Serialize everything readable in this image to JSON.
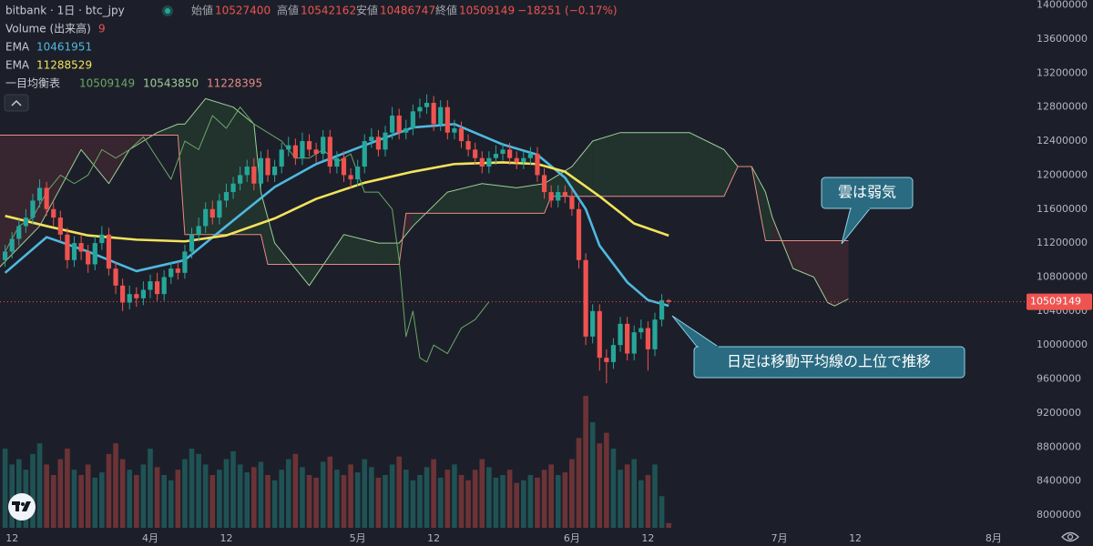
{
  "chart_data": {
    "type": "candlestick",
    "header": {
      "open_label": "始値",
      "high_label": "高値",
      "low_label": "安値",
      "close_label": "終値",
      "change": {
        "value": -18251,
        "label": "−18251 (−0.17%)"
      }
    },
    "xlim": [
      0.26,
      148.5
    ],
    "xticks": [
      {
        "value": 2,
        "label": "12"
      },
      {
        "value": 22,
        "label": "4月"
      },
      {
        "value": 33,
        "label": "12"
      },
      {
        "value": 52,
        "label": "5月"
      },
      {
        "value": 63,
        "label": "12"
      },
      {
        "value": 83,
        "label": "6月"
      },
      {
        "value": 94,
        "label": "12"
      },
      {
        "value": 113,
        "label": "7月"
      },
      {
        "value": 124,
        "label": "12"
      },
      {
        "value": 144,
        "label": "8月"
      }
    ],
    "ylim": [
      7850000,
      14060000
    ],
    "yticks": [
      8000000,
      8400000,
      8800000,
      9200000,
      9600000,
      10000000,
      10400000,
      10800000,
      11200000,
      11600000,
      12000000,
      12400000,
      12800000,
      13200000,
      13600000,
      14000000
    ],
    "grid": false,
    "volume_lim": [
      0,
      1000
    ],
    "annotations": [
      "雲は弱気",
      "日足は移動平均線の上位で推移"
    ],
    "series": [
      {
        "name": "bitbank · 1日 · btc_jpy",
        "type": "candlestick",
        "up_color": "#26a69a",
        "down_color": "#ef5350",
        "x": [
          1,
          2,
          3,
          4,
          5,
          6,
          7,
          8,
          9,
          10,
          11,
          12,
          13,
          14,
          15,
          16,
          17,
          18,
          19,
          20,
          21,
          22,
          23,
          24,
          25,
          26,
          27,
          28,
          29,
          30,
          31,
          32,
          33,
          34,
          35,
          36,
          37,
          38,
          39,
          40,
          41,
          42,
          43,
          44,
          45,
          46,
          47,
          48,
          49,
          50,
          51,
          52,
          53,
          54,
          55,
          56,
          57,
          58,
          59,
          60,
          61,
          62,
          63,
          64,
          65,
          66,
          67,
          68,
          69,
          70,
          71,
          72,
          73,
          74,
          75,
          76,
          77,
          78,
          79,
          80,
          81,
          82,
          83,
          84,
          85,
          86,
          87,
          88,
          89,
          90,
          91,
          92,
          93,
          94,
          95,
          96,
          97
        ],
        "open": [
          11000000,
          11100000,
          11250000,
          11400000,
          11500000,
          11700000,
          11850000,
          11600000,
          11500000,
          11300000,
          11000000,
          11200000,
          11100000,
          10950000,
          11200000,
          11300000,
          10900000,
          10700000,
          10500000,
          10600000,
          10550000,
          10650000,
          10750000,
          10600000,
          10800000,
          10900000,
          10850000,
          11100000,
          11300000,
          11400000,
          11600000,
          11500000,
          11700000,
          11800000,
          11900000,
          12000000,
          12100000,
          11900000,
          12200000,
          12000000,
          12100000,
          12300000,
          12350000,
          12200000,
          12400000,
          12300000,
          12250000,
          12450000,
          12100000,
          12200000,
          12000000,
          11950000,
          12100000,
          12400000,
          12450000,
          12300000,
          12500000,
          12700000,
          12500000,
          12550000,
          12750000,
          12800000,
          12850000,
          12600000,
          12800000,
          12500000,
          12550000,
          12400000,
          12300000,
          12200000,
          12100000,
          12200000,
          12250000,
          12300000,
          12200000,
          12150000,
          12200000,
          12250000,
          12000000,
          11800000,
          11700000,
          11800000,
          11750000,
          11600000,
          11000000,
          10100000,
          10400000,
          9850000,
          9800000,
          10000000,
          10250000,
          9900000,
          10150000,
          10200000,
          9950000,
          10300000,
          10527400
        ],
        "high": [
          11180000,
          11330000,
          11480000,
          11600000,
          11780000,
          11950000,
          11920000,
          11680000,
          11580000,
          11380000,
          11280000,
          11300000,
          11180000,
          11280000,
          11400000,
          11380000,
          10980000,
          10780000,
          10700000,
          10680000,
          10750000,
          10830000,
          10850000,
          10880000,
          10980000,
          10980000,
          11180000,
          11380000,
          11500000,
          11680000,
          11700000,
          11780000,
          11900000,
          11980000,
          12100000,
          12180000,
          12200000,
          12280000,
          12300000,
          12180000,
          12380000,
          12450000,
          12430000,
          12500000,
          12480000,
          12380000,
          12530000,
          12530000,
          12280000,
          12280000,
          12080000,
          12180000,
          12480000,
          12550000,
          12530000,
          12580000,
          12800000,
          12780000,
          12650000,
          12830000,
          12900000,
          12950000,
          12930000,
          12880000,
          12880000,
          12650000,
          12630000,
          12480000,
          12380000,
          12280000,
          12280000,
          12350000,
          12380000,
          12380000,
          12280000,
          12280000,
          12330000,
          12330000,
          12080000,
          11880000,
          11880000,
          11880000,
          11830000,
          11680000,
          11080000,
          10480000,
          10480000,
          9950000,
          10080000,
          10330000,
          10330000,
          10230000,
          10300000,
          10280000,
          10380000,
          10600000,
          10542162
        ],
        "low": [
          10920000,
          11020000,
          11170000,
          11320000,
          11420000,
          11620000,
          11520000,
          11400000,
          11220000,
          10900000,
          10920000,
          11000000,
          10850000,
          10880000,
          11120000,
          10820000,
          10600000,
          10400000,
          10420000,
          10450000,
          10470000,
          10550000,
          10520000,
          10520000,
          10720000,
          10770000,
          10780000,
          11020000,
          11220000,
          11320000,
          11420000,
          11420000,
          11620000,
          11720000,
          11820000,
          11920000,
          11820000,
          11820000,
          11920000,
          11920000,
          12020000,
          12220000,
          12120000,
          12120000,
          12220000,
          12150000,
          12170000,
          12020000,
          12020000,
          11920000,
          11850000,
          11870000,
          12020000,
          12320000,
          12220000,
          12220000,
          12420000,
          12420000,
          12420000,
          12470000,
          12670000,
          12720000,
          12520000,
          12520000,
          12420000,
          12420000,
          12320000,
          12220000,
          12120000,
          12020000,
          12020000,
          12120000,
          12170000,
          12120000,
          12070000,
          12070000,
          12120000,
          11920000,
          11720000,
          11620000,
          11620000,
          11670000,
          11520000,
          10900000,
          10000000,
          10020000,
          9700000,
          9550000,
          9720000,
          9920000,
          9820000,
          9820000,
          10070000,
          9700000,
          9870000,
          10220000,
          10486747
        ],
        "close": [
          11100000,
          11250000,
          11400000,
          11500000,
          11700000,
          11850000,
          11600000,
          11500000,
          11300000,
          11000000,
          11200000,
          11100000,
          10950000,
          11200000,
          11300000,
          10900000,
          10700000,
          10500000,
          10600000,
          10550000,
          10650000,
          10750000,
          10600000,
          10800000,
          10900000,
          10850000,
          11100000,
          11300000,
          11400000,
          11600000,
          11500000,
          11700000,
          11800000,
          11900000,
          12000000,
          12100000,
          11900000,
          12200000,
          12000000,
          12100000,
          12300000,
          12350000,
          12200000,
          12400000,
          12300000,
          12250000,
          12450000,
          12100000,
          12200000,
          12000000,
          11950000,
          12100000,
          12400000,
          12450000,
          12300000,
          12500000,
          12700000,
          12500000,
          12550000,
          12750000,
          12800000,
          12850000,
          12600000,
          12800000,
          12500000,
          12550000,
          12400000,
          12300000,
          12200000,
          12100000,
          12200000,
          12250000,
          12300000,
          12200000,
          12150000,
          12200000,
          12250000,
          12000000,
          11800000,
          11700000,
          11800000,
          11750000,
          11600000,
          11000000,
          10100000,
          10400000,
          9850000,
          9800000,
          10000000,
          10250000,
          9900000,
          10150000,
          10200000,
          9950000,
          10300000,
          10527400,
          10509149
        ]
      },
      {
        "name": "Volume (出来高)",
        "type": "volume",
        "up_color": "rgba(38,166,154,0.38)",
        "down_color": "rgba(239,83,80,0.38)",
        "values": [
          150,
          120,
          130,
          110,
          140,
          160,
          120,
          100,
          130,
          150,
          110,
          100,
          120,
          95,
          105,
          140,
          160,
          130,
          110,
          100,
          120,
          150,
          115,
          100,
          90,
          110,
          130,
          150,
          140,
          120,
          100,
          110,
          130,
          145,
          120,
          105,
          115,
          125,
          100,
          90,
          110,
          130,
          140,
          115,
          100,
          95,
          125,
          135,
          110,
          100,
          120,
          105,
          130,
          115,
          95,
          100,
          120,
          135,
          110,
          90,
          100,
          115,
          130,
          95,
          110,
          120,
          100,
          90,
          110,
          130,
          115,
          95,
          100,
          110,
          85,
          90,
          100,
          95,
          110,
          120,
          100,
          105,
          130,
          170,
          250,
          200,
          160,
          180,
          150,
          110,
          120,
          130,
          90,
          100,
          120,
          60,
          9
        ]
      },
      {
        "name": "EMA",
        "type": "line",
        "color": "#4fb8e0",
        "x": [
          1,
          7,
          13,
          20,
          27,
          33,
          40,
          46,
          53,
          60,
          66,
          73,
          78,
          82,
          85,
          87,
          91,
          94,
          97
        ],
        "values": [
          10850000,
          11270000,
          11100000,
          10870000,
          11000000,
          11400000,
          11860000,
          12130000,
          12350000,
          12560000,
          12600000,
          12360000,
          12240000,
          11970000,
          11600000,
          11170000,
          10740000,
          10530000,
          10461951
        ]
      },
      {
        "name": "EMA",
        "type": "line",
        "color": "#f3e35c",
        "x": [
          1,
          7,
          13,
          20,
          27,
          33,
          40,
          46,
          53,
          60,
          66,
          73,
          78,
          82,
          87,
          92,
          97
        ],
        "values": [
          11520000,
          11400000,
          11290000,
          11240000,
          11220000,
          11290000,
          11490000,
          11720000,
          11910000,
          12040000,
          12130000,
          12150000,
          12130000,
          12040000,
          11750000,
          11430000,
          11288529
        ]
      },
      {
        "name": "一目均衡表",
        "type": "ichimoku",
        "cloud_up_color": "rgba(76,175,80,0.13)",
        "cloud_down_color": "rgba(200,70,90,0.16)",
        "lagging": {
          "color": "#6aa866",
          "x": [
            1,
            3,
            5,
            7,
            9,
            11,
            13,
            15,
            17,
            19,
            21,
            23,
            25,
            27,
            29,
            31,
            33,
            35,
            37,
            39,
            41,
            43,
            45,
            47,
            49,
            51,
            53,
            55,
            57,
            58,
            59,
            60,
            61,
            62,
            63,
            65,
            67,
            69,
            71
          ],
          "values": [
            11100000,
            11400000,
            11500000,
            11800000,
            12000000,
            11900000,
            12000000,
            12300000,
            12200000,
            12300000,
            12450000,
            12200000,
            11950000,
            12400000,
            12300000,
            12700000,
            12550000,
            12800000,
            12600000,
            12500000,
            12400000,
            12200000,
            12200000,
            12300000,
            12150000,
            12250000,
            11800000,
            11800000,
            11600000,
            11000000,
            10100000,
            10400000,
            9850000,
            9800000,
            10000000,
            9900000,
            10200000,
            10300000,
            10509149
          ]
        },
        "span_x": [
          0,
          6,
          12,
          16,
          19,
          23,
          26,
          27,
          30,
          34,
          37,
          38,
          39,
          40,
          45,
          50,
          55,
          58,
          59,
          60,
          65,
          70,
          75,
          79,
          80,
          83,
          86,
          90,
          100,
          105,
          107,
          109,
          111,
          112,
          115,
          118,
          120,
          121,
          123
        ],
        "span_a": {
          "color": "#9ccf97",
          "values": [
            10900000,
            11400000,
            12300000,
            11900000,
            12300000,
            12500000,
            12600000,
            12600000,
            12900000,
            12800000,
            12600000,
            11800000,
            11500000,
            11200000,
            10700000,
            11300000,
            11200000,
            11200000,
            11300000,
            11400000,
            11800000,
            11900000,
            11850000,
            11900000,
            11950000,
            12100000,
            12400000,
            12500000,
            12500000,
            12300000,
            12100000,
            12100000,
            11800000,
            11500000,
            10900000,
            10800000,
            10500000,
            10460000,
            10543850
          ]
        },
        "span_b": {
          "color": "#ea8a85",
          "values": [
            12470000,
            12470000,
            12470000,
            12470000,
            12470000,
            12470000,
            12470000,
            11300000,
            11300000,
            11300000,
            11300000,
            11300000,
            10950000,
            10950000,
            10950000,
            10950000,
            10950000,
            10950000,
            11550000,
            11550000,
            11550000,
            11550000,
            11550000,
            11550000,
            11750000,
            11750000,
            11750000,
            11750000,
            11750000,
            11750000,
            12100000,
            12100000,
            11228395,
            11228395,
            11228395,
            11228395,
            11228395,
            11228395,
            11228395
          ]
        }
      }
    ]
  }
}
